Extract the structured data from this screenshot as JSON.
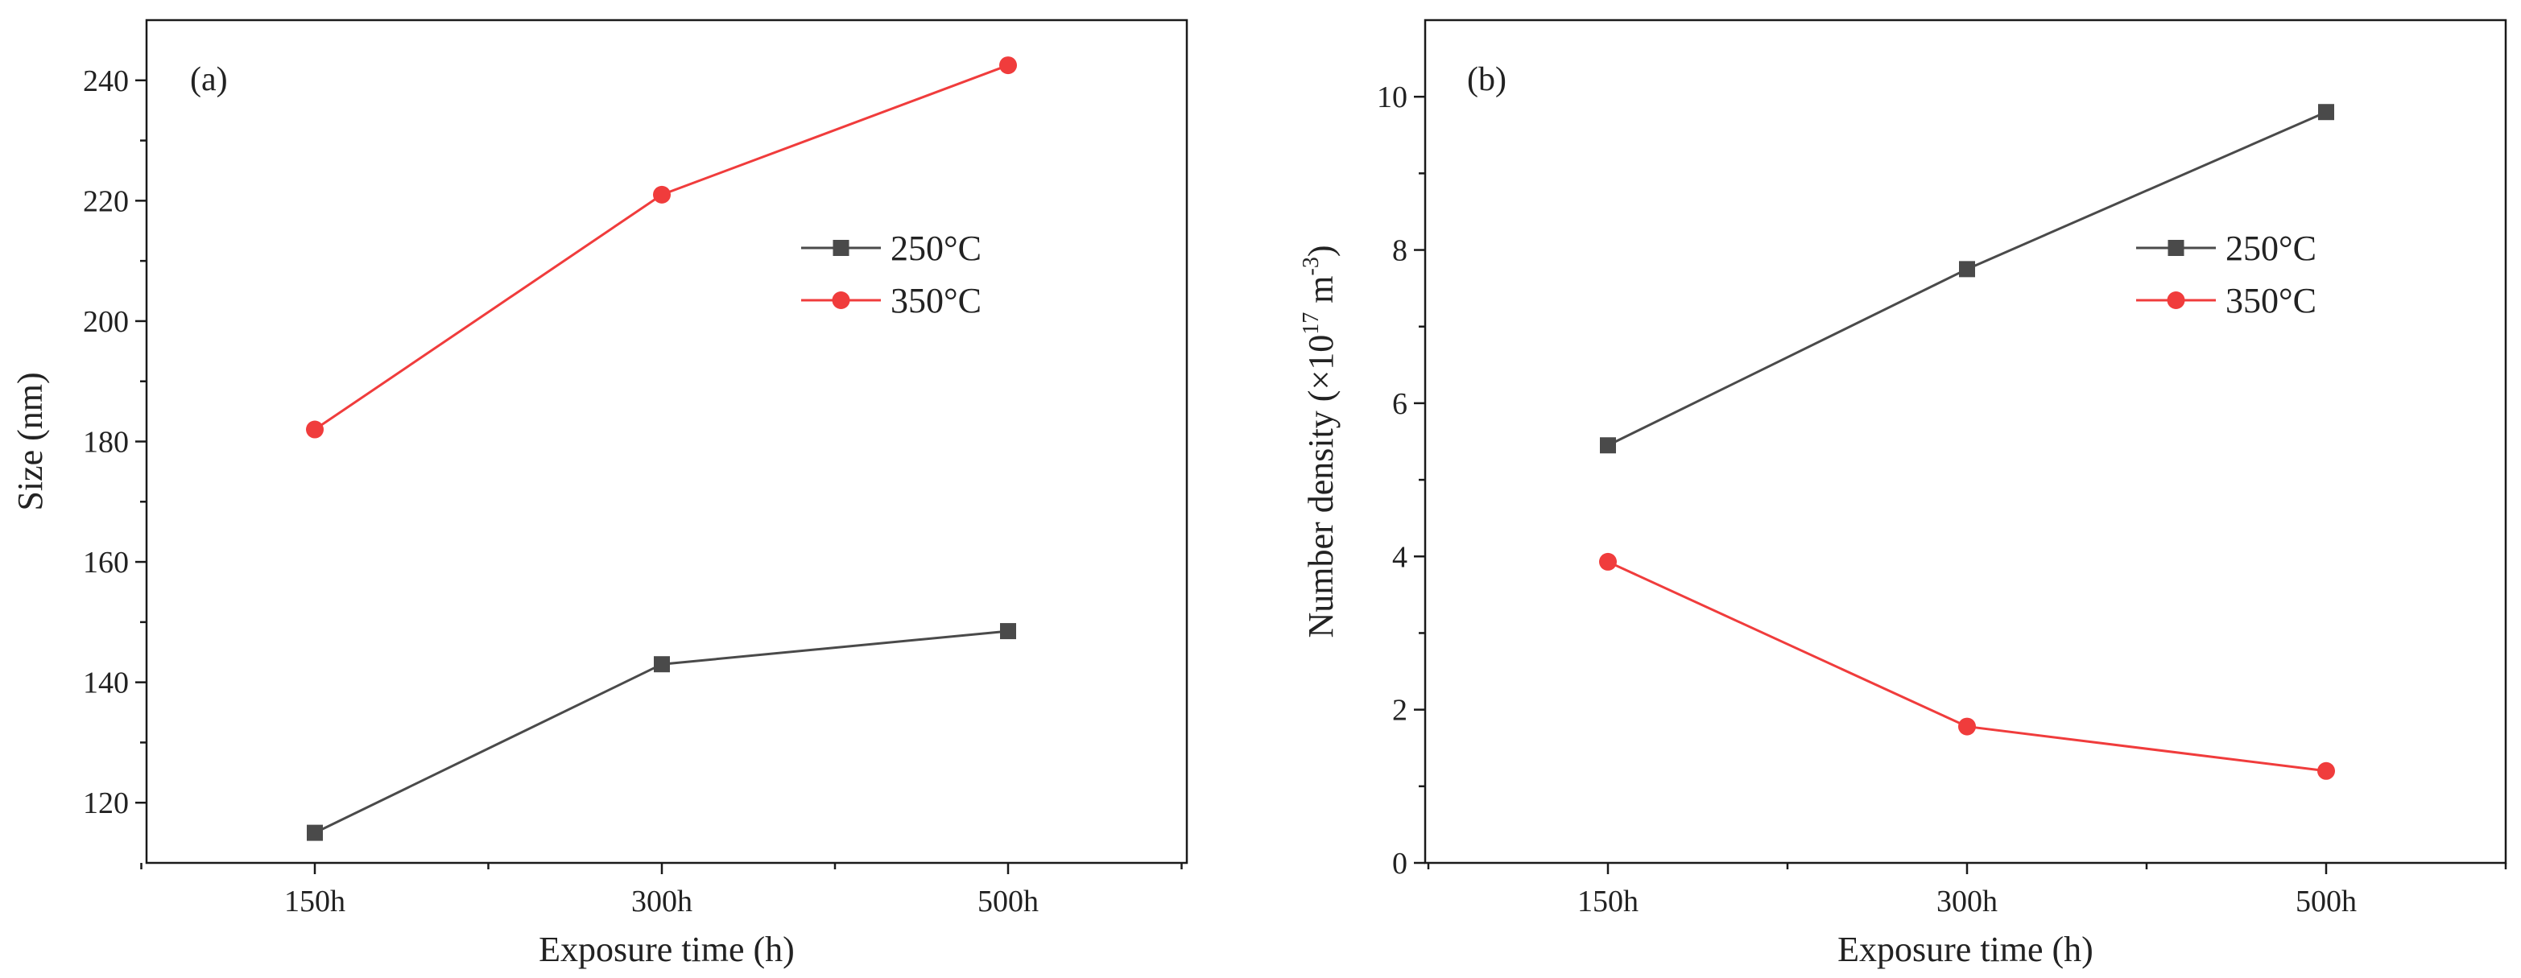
{
  "chart_data": [
    {
      "type": "line",
      "panel_label": "(a)",
      "title": "",
      "xlabel": "Exposure time (h)",
      "ylabel": "Size (nm)",
      "categories": [
        "150h",
        "300h",
        "500h"
      ],
      "ylim": [
        110,
        250
      ],
      "yticks": [
        120,
        140,
        160,
        180,
        200,
        220,
        240
      ],
      "ytick_labels": [
        "120",
        "140",
        "160",
        "180",
        "200",
        "220",
        "240"
      ],
      "legend_position": "upper-right",
      "series": [
        {
          "name": "250°C",
          "color": "#4a4a4a",
          "marker": "square",
          "values": [
            115,
            143,
            148.5
          ]
        },
        {
          "name": "350°C",
          "color": "#f03c3c",
          "marker": "circle",
          "values": [
            182,
            221,
            242.5
          ]
        }
      ]
    },
    {
      "type": "line",
      "panel_label": "(b)",
      "title": "",
      "xlabel": "Exposure time (h)",
      "ylabel": {
        "prefix": "Number density (×10",
        "exp1": "17",
        "middle": " m",
        "exp2": "-3",
        "suffix": ")"
      },
      "categories": [
        "150h",
        "300h",
        "500h"
      ],
      "ylim": [
        0,
        11
      ],
      "yticks": [
        0,
        2,
        4,
        6,
        8,
        10
      ],
      "ytick_labels": [
        "0",
        "2",
        "4",
        "6",
        "8",
        "10"
      ],
      "legend_position": "upper-right",
      "series": [
        {
          "name": "250°C",
          "color": "#4a4a4a",
          "marker": "square",
          "values": [
            5.45,
            7.75,
            9.8
          ]
        },
        {
          "name": "350°C",
          "color": "#f03c3c",
          "marker": "circle",
          "values": [
            3.93,
            1.78,
            1.2
          ]
        }
      ]
    }
  ]
}
